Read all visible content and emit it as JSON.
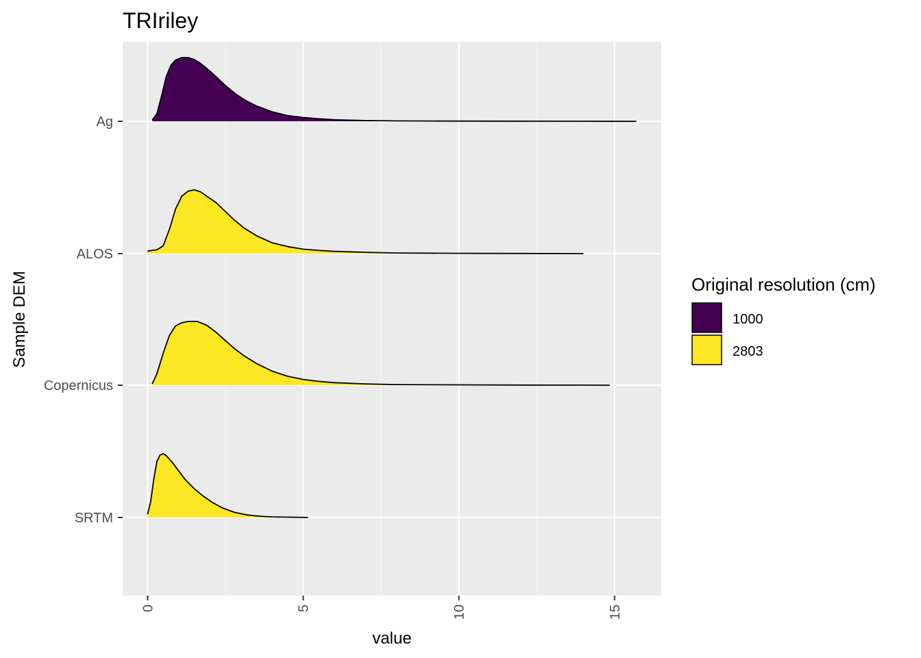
{
  "chart_data": {
    "type": "area",
    "subtype": "ridgeline-density",
    "title": "TRIriley",
    "xlabel": "value",
    "ylabel": "Sample DEM",
    "xlim": [
      -0.8,
      16.5
    ],
    "x_ticks": [
      0,
      5,
      10,
      15
    ],
    "x_tick_labels": [
      "0",
      "5",
      "10",
      "15"
    ],
    "x_tick_rotation": "vertical",
    "categories": [
      "Ag",
      "ALOS",
      "Copernicus",
      "SRTM"
    ],
    "grid": true,
    "legend": {
      "title": "Original resolution (cm)",
      "position": "right",
      "entries": [
        {
          "label": "1000",
          "color": "#440154"
        },
        {
          "label": "2803",
          "color": "#FDE725"
        }
      ]
    },
    "colors": {
      "panel": "#EBEBEB",
      "grid_major": "#FFFFFF",
      "grid_minor": "#F5F5F5",
      "outline": "#000000"
    },
    "series": [
      {
        "category": "Ag",
        "resolution": "1000",
        "x": [
          0.15,
          0.3,
          0.45,
          0.6,
          0.75,
          0.9,
          1.1,
          1.3,
          1.5,
          1.7,
          1.9,
          2.2,
          2.5,
          2.8,
          3.1,
          3.5,
          4.0,
          4.5,
          5.0,
          5.5,
          6.0,
          7.0,
          8.0,
          10.0,
          12.0,
          14.0,
          15.7
        ],
        "density": [
          0.02,
          0.12,
          0.4,
          0.7,
          0.88,
          0.96,
          1.0,
          1.0,
          0.97,
          0.91,
          0.83,
          0.7,
          0.56,
          0.44,
          0.34,
          0.24,
          0.15,
          0.09,
          0.06,
          0.04,
          0.025,
          0.012,
          0.006,
          0.003,
          0.002,
          0.001,
          0.0
        ]
      },
      {
        "category": "ALOS",
        "resolution": "2803",
        "x": [
          0.0,
          0.3,
          0.5,
          0.7,
          0.9,
          1.1,
          1.3,
          1.5,
          1.7,
          1.9,
          2.2,
          2.5,
          2.8,
          3.1,
          3.5,
          4.0,
          4.5,
          5.0,
          5.5,
          6.0,
          7.0,
          8.0,
          10.0,
          12.0,
          14.0
        ],
        "density": [
          0.04,
          0.06,
          0.12,
          0.38,
          0.7,
          0.9,
          0.98,
          1.0,
          0.97,
          0.9,
          0.8,
          0.66,
          0.52,
          0.4,
          0.28,
          0.17,
          0.11,
          0.07,
          0.05,
          0.035,
          0.02,
          0.01,
          0.004,
          0.002,
          0.0
        ]
      },
      {
        "category": "Copernicus",
        "resolution": "2803",
        "x": [
          0.15,
          0.3,
          0.5,
          0.7,
          0.9,
          1.1,
          1.3,
          1.6,
          1.9,
          2.2,
          2.5,
          2.8,
          3.1,
          3.5,
          4.0,
          4.5,
          5.0,
          5.5,
          6.0,
          7.0,
          8.0,
          10.0,
          12.0,
          14.0,
          14.85
        ],
        "density": [
          0.02,
          0.18,
          0.5,
          0.78,
          0.93,
          0.98,
          1.0,
          1.0,
          0.94,
          0.83,
          0.7,
          0.57,
          0.46,
          0.34,
          0.22,
          0.14,
          0.09,
          0.06,
          0.04,
          0.02,
          0.01,
          0.005,
          0.002,
          0.001,
          0.0
        ]
      },
      {
        "category": "SRTM",
        "resolution": "2803",
        "x": [
          0.0,
          0.1,
          0.2,
          0.3,
          0.4,
          0.5,
          0.6,
          0.8,
          1.0,
          1.2,
          1.5,
          1.8,
          2.1,
          2.4,
          2.8,
          3.2,
          3.6,
          4.0,
          4.5,
          5.15
        ],
        "density": [
          0.05,
          0.25,
          0.6,
          0.88,
          0.98,
          1.0,
          0.97,
          0.86,
          0.73,
          0.6,
          0.45,
          0.33,
          0.23,
          0.15,
          0.08,
          0.04,
          0.02,
          0.01,
          0.005,
          0.0
        ]
      }
    ]
  }
}
